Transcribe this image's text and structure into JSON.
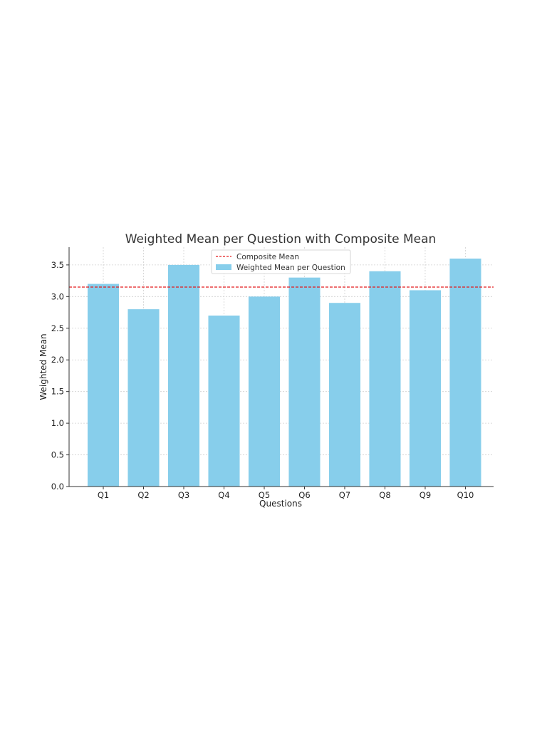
{
  "chart_data": {
    "type": "bar",
    "title": "Weighted Mean per Question with Composite Mean",
    "xlabel": "Questions",
    "ylabel": "Weighted Mean",
    "categories": [
      "Q1",
      "Q2",
      "Q3",
      "Q4",
      "Q5",
      "Q6",
      "Q7",
      "Q8",
      "Q9",
      "Q10"
    ],
    "series": [
      {
        "name": "Weighted Mean per Question",
        "values": [
          3.2,
          2.8,
          3.5,
          2.7,
          3.0,
          3.3,
          2.9,
          3.4,
          3.1,
          3.6
        ],
        "color": "#87CEEB"
      }
    ],
    "reference_line": {
      "name": "Composite Mean",
      "value": 3.15,
      "color": "#E31A1C",
      "style": "dashed"
    },
    "ylim": [
      0,
      3.78
    ],
    "yticks": [
      "0.0",
      "0.5",
      "1.0",
      "1.5",
      "2.0",
      "2.5",
      "3.0",
      "3.5"
    ],
    "grid": true,
    "legend_position": "top-center"
  }
}
